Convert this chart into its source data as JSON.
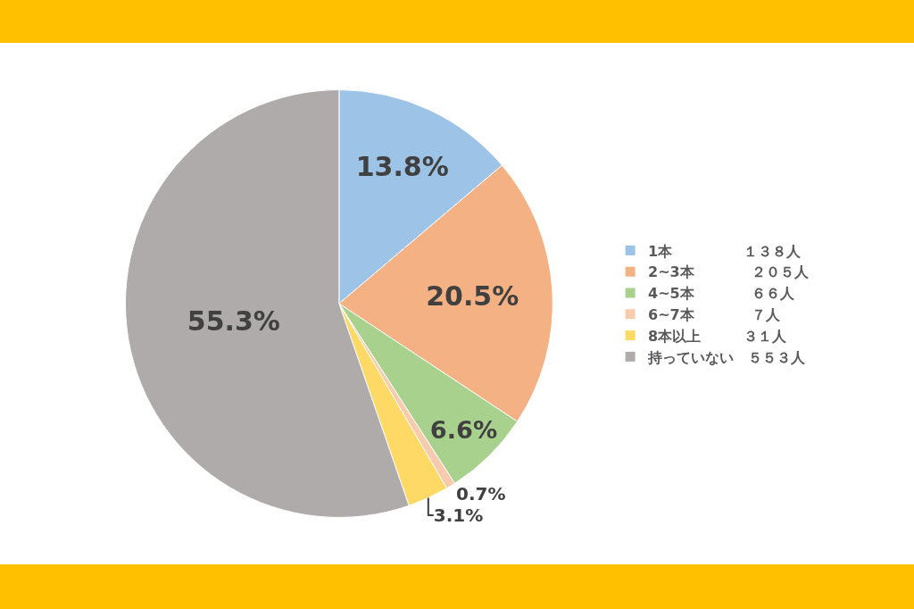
{
  "chart_data": {
    "type": "pie",
    "categories": [
      "1本　　　　　１３８人",
      "2~3本　　　　２０５人",
      "4~5本　　　　６６人",
      "6~7本　　　　７人",
      "8本以上　　　３１人",
      "持っていない　５５３人"
    ],
    "values": [
      13.8,
      20.5,
      6.6,
      0.7,
      3.1,
      55.3
    ],
    "colors": [
      "#9dc3e6",
      "#f4b183",
      "#a9d18e",
      "#f8cbad",
      "#ffd966",
      "#afabab"
    ],
    "value_labels": [
      "13.8%",
      "20.5%",
      "6.6%",
      "0.7%",
      "3.1%",
      "55.3%"
    ],
    "legend": "right"
  }
}
